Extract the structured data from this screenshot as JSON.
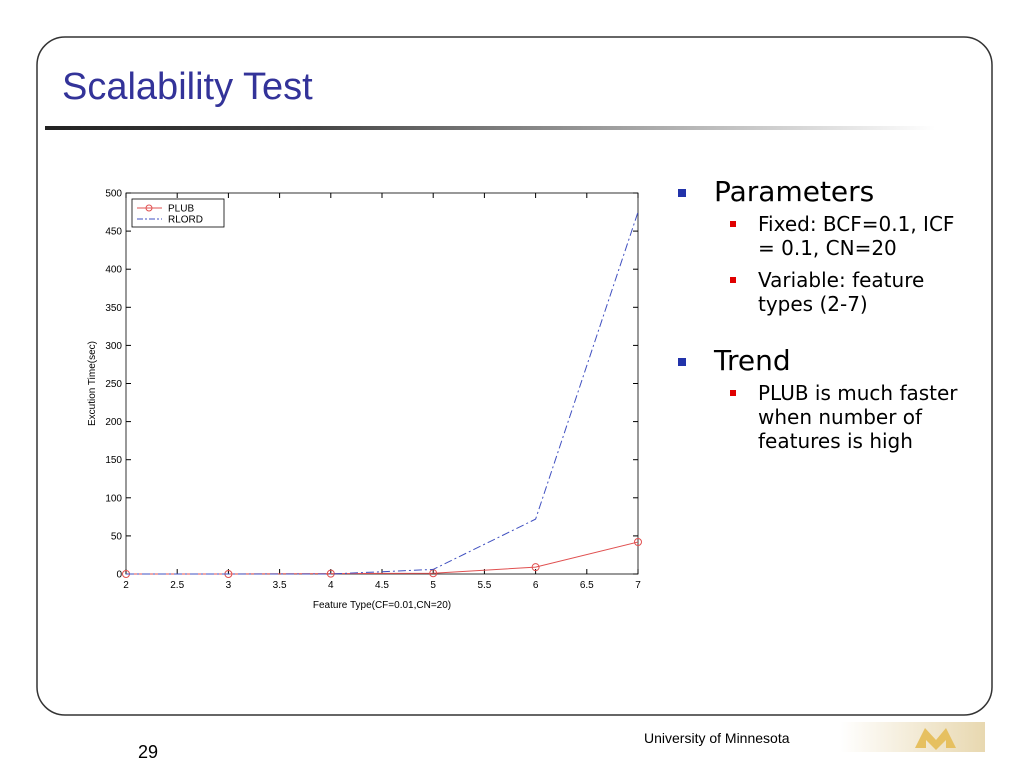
{
  "slide": {
    "title": "Scalability Test",
    "bullets": [
      {
        "text": "Parameters",
        "sub": [
          "Fixed: BCF=0.1, ICF = 0.1, CN=20",
          "Variable: feature types (2-7)"
        ]
      },
      {
        "text": "Trend",
        "sub": [
          "PLUB is much faster when number of features is high"
        ]
      }
    ],
    "footer": "University of Minnesota",
    "page_number": "29"
  },
  "chart_data": {
    "type": "line",
    "x": [
      2,
      3,
      4,
      5,
      6,
      7
    ],
    "series": [
      {
        "name": "PLUB",
        "color": "#e05050",
        "values": [
          0,
          0,
          0.5,
          1,
          9,
          42
        ]
      },
      {
        "name": "RLORD",
        "color": "#4050c0",
        "values": [
          0,
          0,
          0,
          6,
          72,
          475
        ]
      }
    ],
    "xlabel": "Feature Type(CF=0.01,CN=20)",
    "ylabel": "Excution Time(sec)",
    "xlim": [
      2,
      7
    ],
    "xticks": [
      2,
      2.5,
      3,
      3.5,
      4,
      4.5,
      5,
      5.5,
      6,
      6.5,
      7
    ],
    "ylim": [
      0,
      500
    ],
    "yticks": [
      0,
      50,
      100,
      150,
      200,
      250,
      300,
      350,
      400,
      450,
      500
    ],
    "legend": "top-left"
  }
}
